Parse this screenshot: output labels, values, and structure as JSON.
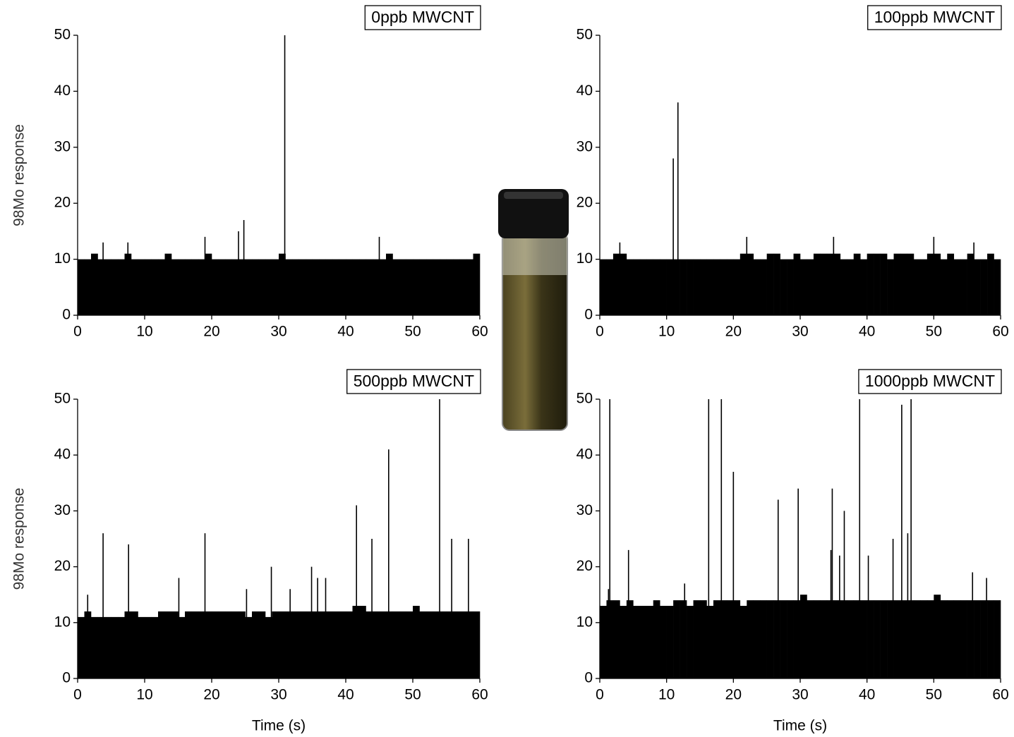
{
  "chart_data": [
    {
      "type": "bar",
      "title": "0ppb MWCNT",
      "ylabel": "98Mo response",
      "xlim": [
        0,
        60
      ],
      "xticks": [
        0,
        10,
        20,
        30,
        40,
        50,
        60
      ],
      "ylim": [
        0,
        50
      ],
      "yticks": [
        0,
        10,
        20,
        30,
        40,
        50
      ],
      "series": [
        {
          "style": "floor",
          "color": "#000000",
          "bins": [
            0,
            1,
            2,
            3,
            4,
            5,
            6,
            7,
            8,
            9,
            10,
            11,
            12,
            13,
            14,
            15,
            16,
            17,
            18,
            19,
            20,
            21,
            22,
            23,
            24,
            25,
            26,
            27,
            28,
            29,
            30,
            31,
            32,
            33,
            34,
            35,
            36,
            37,
            38,
            39,
            40,
            41,
            42,
            43,
            44,
            45,
            46,
            47,
            48,
            49,
            50,
            51,
            52,
            53,
            54,
            55,
            56,
            57,
            58,
            59,
            60
          ],
          "values": [
            10,
            10,
            11,
            10,
            10,
            10,
            10,
            11,
            10,
            10,
            10,
            10,
            10,
            11,
            10,
            10,
            10,
            10,
            10,
            11,
            10,
            10,
            10,
            10,
            10,
            10,
            10,
            10,
            10,
            10,
            11,
            10,
            10,
            10,
            10,
            10,
            10,
            10,
            10,
            10,
            10,
            10,
            10,
            10,
            10,
            10,
            11,
            10,
            10,
            10,
            10,
            10,
            10,
            10,
            10,
            10,
            10,
            10,
            10,
            11
          ]
        },
        {
          "style": "spike",
          "color": "#000000",
          "x": [
            3.8,
            7.5,
            19,
            24,
            24.8,
            30.9,
            45
          ],
          "values": [
            13,
            13,
            14,
            15,
            17,
            50,
            14
          ]
        }
      ]
    },
    {
      "type": "bar",
      "title": "100ppb MWCNT",
      "xlim": [
        0,
        60
      ],
      "xticks": [
        0,
        10,
        20,
        30,
        40,
        50,
        60
      ],
      "ylim": [
        0,
        50
      ],
      "yticks": [
        0,
        10,
        20,
        30,
        40,
        50
      ],
      "series": [
        {
          "style": "floor",
          "color": "#000000",
          "bins": [
            0,
            1,
            2,
            3,
            4,
            5,
            6,
            7,
            8,
            9,
            10,
            11,
            12,
            13,
            14,
            15,
            16,
            17,
            18,
            19,
            20,
            21,
            22,
            23,
            24,
            25,
            26,
            27,
            28,
            29,
            30,
            31,
            32,
            33,
            34,
            35,
            36,
            37,
            38,
            39,
            40,
            41,
            42,
            43,
            44,
            45,
            46,
            47,
            48,
            49,
            50,
            51,
            52,
            53,
            54,
            55,
            56,
            57,
            58,
            59,
            60
          ],
          "values": [
            10,
            10,
            11,
            11,
            10,
            10,
            10,
            10,
            10,
            10,
            10,
            10,
            10,
            10,
            10,
            10,
            10,
            10,
            10,
            10,
            10,
            11,
            11,
            10,
            10,
            11,
            11,
            10,
            10,
            11,
            10,
            10,
            11,
            11,
            11,
            11,
            10,
            10,
            11,
            10,
            11,
            11,
            11,
            10,
            11,
            11,
            11,
            10,
            10,
            11,
            11,
            10,
            11,
            10,
            10,
            11,
            10,
            10,
            11,
            10
          ]
        },
        {
          "style": "spike",
          "color": "#000000",
          "x": [
            3,
            11,
            11.7,
            22,
            35,
            50,
            56
          ],
          "values": [
            13,
            28,
            38,
            14,
            14,
            14,
            13
          ]
        }
      ]
    },
    {
      "type": "bar",
      "title": "500ppb MWCNT",
      "xlabel": "Time (s)",
      "ylabel": "98Mo response",
      "xlim": [
        0,
        60
      ],
      "xticks": [
        0,
        10,
        20,
        30,
        40,
        50,
        60
      ],
      "ylim": [
        0,
        50
      ],
      "yticks": [
        0,
        10,
        20,
        30,
        40,
        50
      ],
      "series": [
        {
          "style": "floor",
          "color": "#000000",
          "bins": [
            0,
            1,
            2,
            3,
            4,
            5,
            6,
            7,
            8,
            9,
            10,
            11,
            12,
            13,
            14,
            15,
            16,
            17,
            18,
            19,
            20,
            21,
            22,
            23,
            24,
            25,
            26,
            27,
            28,
            29,
            30,
            31,
            32,
            33,
            34,
            35,
            36,
            37,
            38,
            39,
            40,
            41,
            42,
            43,
            44,
            45,
            46,
            47,
            48,
            49,
            50,
            51,
            52,
            53,
            54,
            55,
            56,
            57,
            58,
            59,
            60
          ],
          "values": [
            11,
            12,
            11,
            11,
            11,
            11,
            11,
            12,
            12,
            11,
            11,
            11,
            12,
            12,
            12,
            11,
            12,
            12,
            12,
            12,
            12,
            12,
            12,
            12,
            12,
            11,
            12,
            12,
            11,
            12,
            12,
            12,
            12,
            12,
            12,
            12,
            12,
            12,
            12,
            12,
            12,
            13,
            13,
            12,
            12,
            12,
            12,
            12,
            12,
            12,
            13,
            12,
            12,
            12,
            12,
            12,
            12,
            12,
            12,
            12
          ]
        },
        {
          "style": "spike",
          "color": "#000000",
          "x": [
            1.5,
            3.8,
            7.6,
            15.1,
            19,
            25.2,
            28.9,
            31.7,
            34.9,
            35.8,
            37,
            41.6,
            43.9,
            46.4,
            54,
            55.8,
            58.3
          ],
          "values": [
            15,
            26,
            24,
            18,
            26,
            16,
            20,
            16,
            20,
            18,
            18,
            31,
            25,
            41,
            50,
            25,
            25
          ]
        }
      ]
    },
    {
      "type": "bar",
      "title": "1000ppb MWCNT",
      "xlabel": "Time (s)",
      "xlim": [
        0,
        60
      ],
      "xticks": [
        0,
        10,
        20,
        30,
        40,
        50,
        60
      ],
      "ylim": [
        0,
        50
      ],
      "yticks": [
        0,
        10,
        20,
        30,
        40,
        50
      ],
      "series": [
        {
          "style": "floor",
          "color": "#000000",
          "bins": [
            0,
            1,
            2,
            3,
            4,
            5,
            6,
            7,
            8,
            9,
            10,
            11,
            12,
            13,
            14,
            15,
            16,
            17,
            18,
            19,
            20,
            21,
            22,
            23,
            24,
            25,
            26,
            27,
            28,
            29,
            30,
            31,
            32,
            33,
            34,
            35,
            36,
            37,
            38,
            39,
            40,
            41,
            42,
            43,
            44,
            45,
            46,
            47,
            48,
            49,
            50,
            51,
            52,
            53,
            54,
            55,
            56,
            57,
            58,
            59,
            60
          ],
          "values": [
            13,
            14,
            14,
            13,
            14,
            13,
            13,
            13,
            14,
            13,
            13,
            14,
            14,
            13,
            14,
            14,
            13,
            14,
            14,
            14,
            14,
            13,
            14,
            14,
            14,
            14,
            14,
            14,
            14,
            14,
            15,
            14,
            14,
            14,
            14,
            14,
            14,
            14,
            14,
            14,
            14,
            14,
            14,
            14,
            14,
            14,
            14,
            14,
            14,
            14,
            15,
            14,
            14,
            14,
            14,
            14,
            14,
            14,
            14,
            14
          ]
        },
        {
          "style": "spike",
          "color": "#000000",
          "x": [
            1.3,
            1.5,
            4.3,
            12.7,
            16.3,
            18.2,
            20,
            26.7,
            29.7,
            34.6,
            34.8,
            35.9,
            36.6,
            38.9,
            40.2,
            43.9,
            45.2,
            46.1,
            46.6,
            55.8,
            57.9
          ],
          "values": [
            16,
            50,
            23,
            17,
            50,
            50,
            37,
            32,
            34,
            23,
            34,
            22,
            30,
            50,
            22,
            25,
            49,
            26,
            50,
            19,
            18
          ]
        }
      ]
    }
  ]
}
